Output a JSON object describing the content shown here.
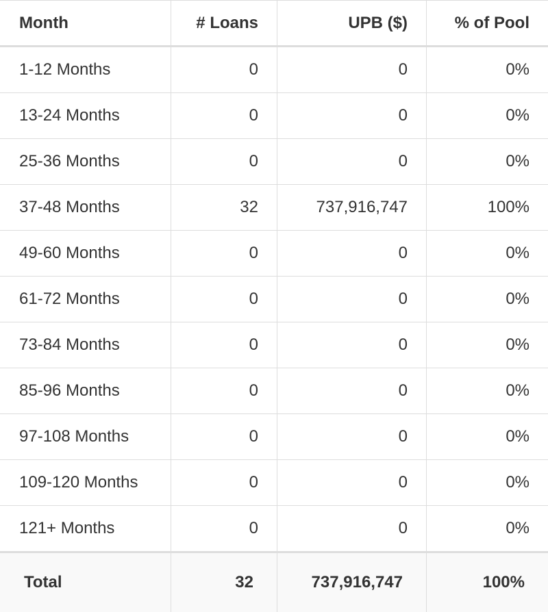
{
  "table": {
    "header": [
      "Month",
      "# Loans",
      "UPB ($)",
      "% of Pool"
    ],
    "rows": [
      [
        "1-12 Months",
        "0",
        "0",
        "0%"
      ],
      [
        "13-24 Months",
        "0",
        "0",
        "0%"
      ],
      [
        "25-36 Months",
        "0",
        "0",
        "0%"
      ],
      [
        "37-48 Months",
        "32",
        "737,916,747",
        "100%"
      ],
      [
        "49-60 Months",
        "0",
        "0",
        "0%"
      ],
      [
        "61-72 Months",
        "0",
        "0",
        "0%"
      ],
      [
        "73-84 Months",
        "0",
        "0",
        "0%"
      ],
      [
        "85-96 Months",
        "0",
        "0",
        "0%"
      ],
      [
        "97-108 Months",
        "0",
        "0",
        "0%"
      ],
      [
        "109-120 Months",
        "0",
        "0",
        "0%"
      ],
      [
        "121+ Months",
        "0",
        "0",
        "0%"
      ]
    ],
    "footer": [
      "Total",
      "32",
      "737,916,747",
      "100%"
    ]
  }
}
